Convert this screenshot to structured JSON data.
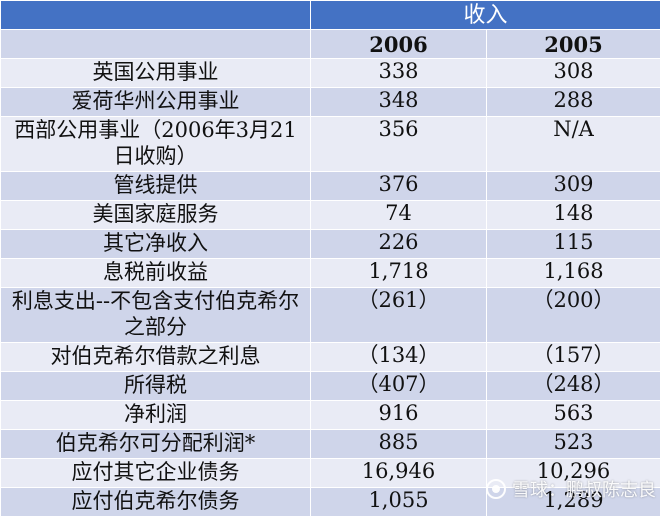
{
  "table": {
    "group_header": "收入",
    "years": [
      "2006",
      "2005"
    ],
    "rows": [
      {
        "label": "英国公用事业",
        "v2006": "338",
        "v2005": "308"
      },
      {
        "label": "爱荷华州公用事业",
        "v2006": "348",
        "v2005": "288"
      },
      {
        "label": "西部公用事业（2006年3月21日收购）",
        "v2006": "356",
        "v2005": "N/A"
      },
      {
        "label": "管线提供",
        "v2006": "376",
        "v2005": "309"
      },
      {
        "label": "美国家庭服务",
        "v2006": "74",
        "v2005": "148"
      },
      {
        "label": "其它净收入",
        "v2006": "226",
        "v2005": "115"
      },
      {
        "label": "息税前收益",
        "v2006": "1,718",
        "v2005": "1,168"
      },
      {
        "label": "利息支出--不包含支付伯克希尔之部分",
        "v2006": "（261）",
        "v2005": "（200）"
      },
      {
        "label": "对伯克希尔借款之利息",
        "v2006": "（134）",
        "v2005": "（157）"
      },
      {
        "label": "所得税",
        "v2006": "（407）",
        "v2005": "（248）"
      },
      {
        "label": "净利润",
        "v2006": "916",
        "v2005": "563"
      },
      {
        "label": "伯克希尔可分配利润*",
        "v2006": "885",
        "v2005": "523"
      },
      {
        "label": "应付其它企业债务",
        "v2006": "16,946",
        "v2005": "10,296"
      },
      {
        "label": "应付伯克希尔债务",
        "v2006": "1,055",
        "v2005": "1,289"
      }
    ]
  },
  "watermark": {
    "text": "雪球：鹏叔陈志良",
    "icon": "snowball-logo-icon"
  }
}
